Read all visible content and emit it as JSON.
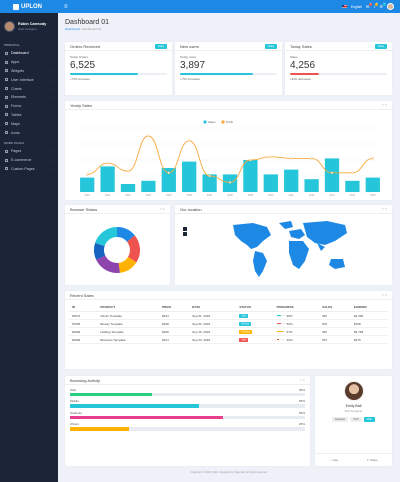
{
  "app": {
    "logo": "UPLON"
  },
  "user": {
    "name": "Rubin Carmody",
    "role": "Web Designer"
  },
  "sidebar": {
    "sections": [
      {
        "title": "PRINCIPAL",
        "items": [
          "Dashboard",
          "Apps",
          "Widgets",
          "User Interface",
          "Charts",
          "Elements",
          "Forms",
          "Tables",
          "Maps",
          "Icons"
        ]
      },
      {
        "title": "MORE PAGES",
        "items": [
          "Pages",
          "E-commerce",
          "Custom Pages"
        ]
      }
    ]
  },
  "topbar": {
    "language": "English",
    "badges": [
      "4",
      "3",
      "2"
    ],
    "badge_colors": [
      "#ef5350",
      "#ffb300",
      "#26c6da"
    ]
  },
  "page": {
    "title": "Dashboard 01",
    "breadcrumb": [
      "Dashboard",
      "Dashboard 01"
    ]
  },
  "stats": [
    {
      "title": "Orders Received",
      "badge": "Daily",
      "label": "Today Orders",
      "value": "6,525",
      "change": "+70% increases",
      "progress": 0.7,
      "color": "#26c6da"
    },
    {
      "title": "New users",
      "badge": "Daily",
      "label": "Today users",
      "value": "3,897",
      "change": "+75% increases",
      "progress": 0.75,
      "color": "#26c6da"
    },
    {
      "title": "Today Sales",
      "badge": "Daily",
      "label": "Sales",
      "value": "4,256",
      "change": "+30% decreases",
      "progress": 0.3,
      "color": "#ef5350"
    }
  ],
  "yearly_sales": {
    "title": "Yearly Sales",
    "tools": "▾ ✕"
  },
  "chart_data": {
    "type": "bar",
    "legend": [
      "Sales",
      "Profit"
    ],
    "categories": [
      "2001",
      "2002",
      "2003",
      "2004",
      "2005",
      "2006",
      "2007",
      "2008",
      "2009",
      "2010",
      "2011",
      "2012",
      "2013",
      "2014",
      "2015"
    ],
    "series": [
      {
        "name": "Sales",
        "color": "#26c6da",
        "type": "bar",
        "values": [
          45,
          80,
          25,
          35,
          75,
          95,
          55,
          55,
          100,
          55,
          70,
          40,
          105,
          35,
          45
        ]
      },
      {
        "name": "Profit",
        "color": "#f6a93b",
        "type": "line",
        "values": [
          55,
          90,
          65,
          175,
          60,
          160,
          50,
          30,
          100,
          110,
          105,
          105,
          60,
          60,
          105
        ]
      }
    ],
    "ylim": [
      0,
      200
    ]
  },
  "browser_status": {
    "title": "Browser Status",
    "tools": "▾ ✕",
    "slices": [
      {
        "value": 14,
        "color": "#1e88e5"
      },
      {
        "value": 20,
        "color": "#ef5350"
      },
      {
        "value": 14,
        "color": "#ffb300"
      },
      {
        "value": 20,
        "color": "#8e44ad"
      },
      {
        "value": 12,
        "color": "#1565c0"
      },
      {
        "value": 20,
        "color": "#26c6da"
      }
    ]
  },
  "our_location": {
    "title": "Our location",
    "tools": "▾ ✕"
  },
  "recent_sales": {
    "title": "Recent Sales",
    "tools": "▾ ✕",
    "columns": [
      "ID",
      "PRODUCT",
      "PRICE",
      "DATE",
      "STATUS",
      "PROGRESS",
      "SALES",
      "EARNED"
    ],
    "rows": [
      {
        "id": "#4572",
        "product": "Admin Template",
        "price": "$444",
        "date": "Sep 01, 2018",
        "status": "Sale",
        "status_color": "#26c6da",
        "progress": "45%",
        "pct": 0.45,
        "pcolor": "#26c6da",
        "sales": "987",
        "earned": "$4,396"
      },
      {
        "id": "#7056",
        "product": "Beauty Template",
        "price": "$198",
        "date": "Sep 02, 2018",
        "status": "Refund",
        "status_color": "#26c6da",
        "progress": "52%",
        "pct": 0.52,
        "pcolor": "#ef5350",
        "sales": "876",
        "earned": "$768"
      },
      {
        "id": "#6284",
        "product": "Holding Template",
        "price": "$345",
        "date": "Sep 15, 2018",
        "status": "Pending",
        "status_color": "#ffb300",
        "progress": "67%",
        "pct": 0.67,
        "pcolor": "#ffb300",
        "sales": "987",
        "earned": "$6,768"
      },
      {
        "id": "#6284",
        "product": "Business Template",
        "price": "$124",
        "date": "Sep 23, 2018",
        "status": "Sale",
        "status_color": "#ef5350",
        "progress": "22%",
        "pct": 0.22,
        "pcolor": "#ef5350",
        "sales": "567",
        "earned": "$476"
      }
    ]
  },
  "browsing_activity": {
    "title": "Browsing Activity",
    "tools": "▾ ✕",
    "rows": [
      {
        "label": "Web",
        "pct": "35%",
        "value": 0.35,
        "color": "#26d07c"
      },
      {
        "label": "Mobile",
        "pct": "55%",
        "value": 0.55,
        "color": "#26c6da"
      },
      {
        "label": "Students",
        "pct": "65%",
        "value": 0.65,
        "color": "#e83e8c"
      },
      {
        "label": "Others",
        "pct": "25%",
        "value": 0.25,
        "color": "#ffb300"
      }
    ]
  },
  "profile_card": {
    "name": "Emily Ball",
    "role": "Web Designer",
    "tags": [
      "Designer",
      "Print",
      "Web"
    ],
    "tag_colors": [
      "#eee",
      "#eee",
      "#26c6da"
    ],
    "footer": [
      "Like",
      "Share"
    ]
  },
  "footer": "Copyright © 2018 Uplon. Designed by Ngendev All rights reserved."
}
